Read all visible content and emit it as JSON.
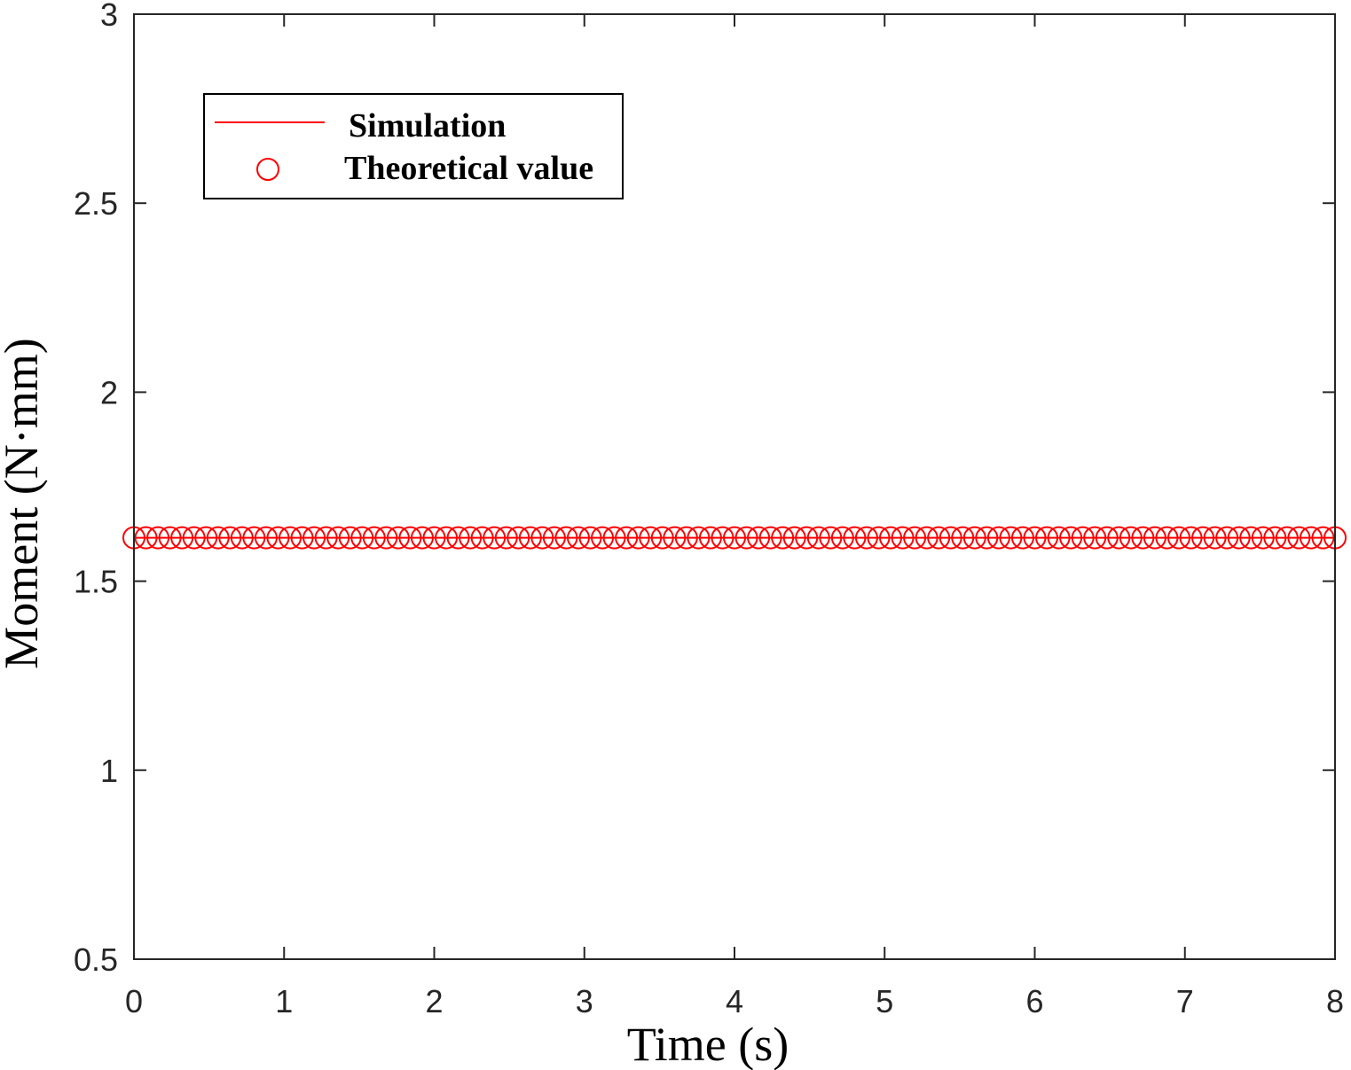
{
  "chart_data": {
    "type": "line",
    "xlabel": "Time (s)",
    "ylabel": "Moment (N·mm)",
    "xlim": [
      0,
      8
    ],
    "ylim": [
      0.5,
      3
    ],
    "xticks": [
      0,
      1,
      2,
      3,
      4,
      5,
      6,
      7,
      8
    ],
    "yticks": [
      0.5,
      1,
      1.5,
      2,
      2.5,
      3
    ],
    "xtick_labels": [
      "0",
      "1",
      "2",
      "3",
      "4",
      "5",
      "6",
      "7",
      "8"
    ],
    "ytick_labels": [
      "0.5",
      "1",
      "1.5",
      "2",
      "2.5",
      "3"
    ],
    "grid": false,
    "legend_position": "top-left",
    "series": [
      {
        "name": "Simulation",
        "style": "line",
        "color": "#ff0000",
        "x": [
          0,
          8
        ],
        "y": [
          1.615,
          1.615
        ]
      },
      {
        "name": "Theoretical value",
        "style": "circle-marker",
        "color": "#ff0000",
        "x_start": 0,
        "x_end": 8,
        "x_step": 0.08,
        "y_constant": 1.615
      }
    ]
  }
}
